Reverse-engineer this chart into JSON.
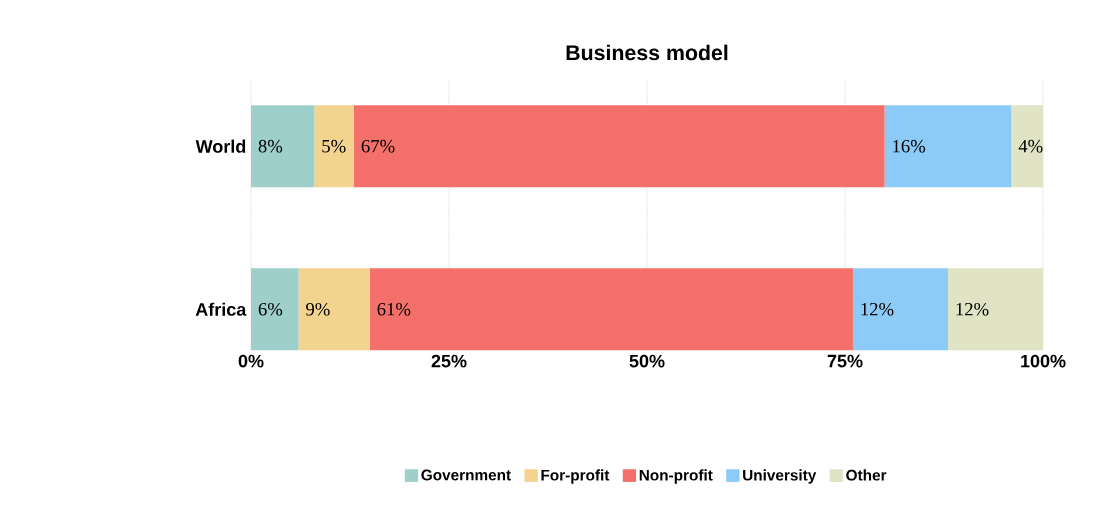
{
  "chart_data": {
    "type": "bar",
    "orientation": "horizontal",
    "stacked": true,
    "title": "Business model",
    "categories": [
      "World",
      "Africa"
    ],
    "series": [
      {
        "name": "Government",
        "color": "#9ecfca",
        "values": [
          8,
          6
        ],
        "value_labels": [
          "8%",
          "6%"
        ]
      },
      {
        "name": "For-profit",
        "color": "#f2d48f",
        "values": [
          5,
          9
        ],
        "value_labels": [
          "5%",
          "9%"
        ]
      },
      {
        "name": "Non-profit",
        "color": "#f4706b",
        "values": [
          67,
          61
        ],
        "value_labels": [
          "67%",
          "61%"
        ]
      },
      {
        "name": "University",
        "color": "#8ccbf7",
        "values": [
          16,
          12
        ],
        "value_labels": [
          "16%",
          "12%"
        ]
      },
      {
        "name": "Other",
        "color": "#e0e4c4",
        "values": [
          4,
          12
        ],
        "value_labels": [
          "4%",
          "12%"
        ]
      }
    ],
    "xlim": [
      0,
      100
    ],
    "xticks": [
      {
        "value": 0,
        "label": "0%"
      },
      {
        "value": 25,
        "label": "25%"
      },
      {
        "value": 50,
        "label": "50%"
      },
      {
        "value": 75,
        "label": "75%"
      },
      {
        "value": 100,
        "label": "100%"
      }
    ],
    "grid": "x",
    "legend": "bottom"
  }
}
